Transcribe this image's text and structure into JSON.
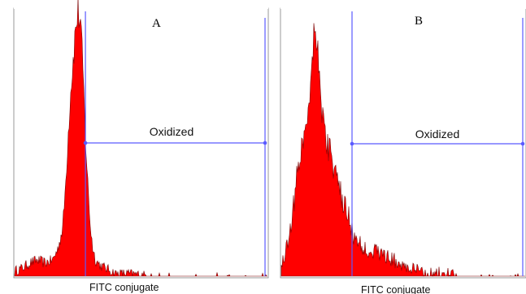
{
  "chart_data": [
    {
      "type": "area",
      "panel_label": "A",
      "xlabel": "FITC conjugate",
      "ylabel": "",
      "x_scale": "log",
      "x": [
        0.0,
        0.03,
        0.06,
        0.09,
        0.12,
        0.15,
        0.17,
        0.19,
        0.2,
        0.21,
        0.22,
        0.23,
        0.24,
        0.25,
        0.26,
        0.27,
        0.28,
        0.29,
        0.3,
        0.31,
        0.32,
        0.34,
        0.36,
        0.38,
        0.4,
        0.45,
        0.55,
        0.65,
        0.75,
        0.85,
        1.0
      ],
      "y": [
        2,
        3,
        5,
        6,
        5,
        6,
        10,
        18,
        32,
        50,
        68,
        80,
        92,
        100,
        96,
        78,
        52,
        34,
        18,
        10,
        6,
        4,
        3,
        2,
        1,
        1,
        0,
        0,
        0,
        0,
        0
      ],
      "series_color": "#ff0000",
      "gate": {
        "label": "Oxidized",
        "x_start": 0.28,
        "x_end": 1.0
      }
    },
    {
      "type": "area",
      "panel_label": "B",
      "xlabel": "FITC conjugate",
      "ylabel": "",
      "x_scale": "log",
      "x": [
        0.0,
        0.02,
        0.04,
        0.06,
        0.08,
        0.1,
        0.12,
        0.14,
        0.16,
        0.18,
        0.2,
        0.22,
        0.24,
        0.26,
        0.28,
        0.3,
        0.33,
        0.36,
        0.4,
        0.44,
        0.48,
        0.52,
        0.56,
        0.6,
        0.66,
        0.72,
        0.8,
        0.9,
        1.0
      ],
      "y": [
        4,
        10,
        20,
        34,
        48,
        56,
        74,
        100,
        70,
        52,
        48,
        38,
        32,
        26,
        22,
        14,
        11,
        10,
        9,
        7,
        5,
        3,
        2,
        1,
        1,
        0,
        0,
        0,
        0
      ],
      "series_color": "#ff0000",
      "gate": {
        "label": "Oxidized",
        "x_start": 0.29,
        "x_end": 1.0
      }
    }
  ]
}
